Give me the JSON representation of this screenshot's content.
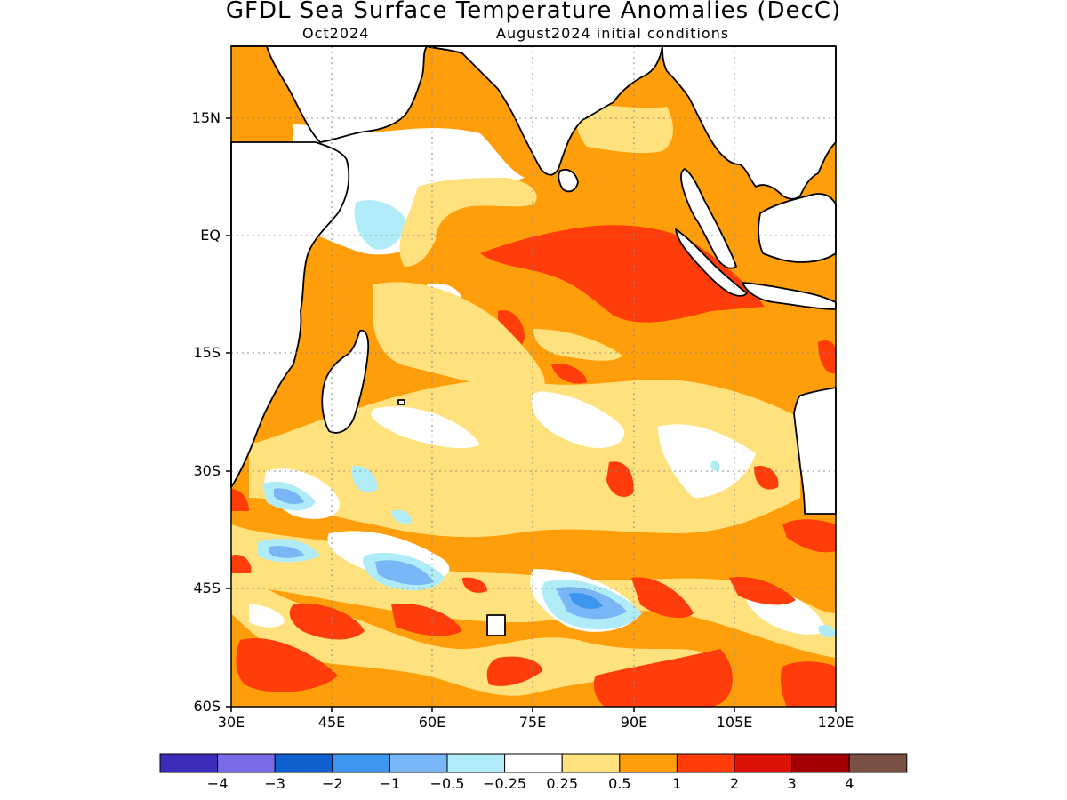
{
  "title": "GFDL Sea Surface Temperature Anomalies (DecC)",
  "subtitle_left": "Oct2024",
  "subtitle_right": "August2024 initial conditions",
  "axes": {
    "lon_range": [
      30,
      120
    ],
    "lat_range": [
      -60,
      24
    ],
    "x_ticks": [
      "30E",
      "45E",
      "60E",
      "75E",
      "90E",
      "105E",
      "120E"
    ],
    "y_ticks": [
      "15N",
      "EQ",
      "15S",
      "30S",
      "45S",
      "60S"
    ],
    "grid": "dotted"
  },
  "colorbar": {
    "labels": [
      "−4",
      "−3",
      "−2",
      "−1",
      "−0.5",
      "−0.25",
      "0.25",
      "0.5",
      "1",
      "2",
      "3",
      "4"
    ],
    "colors": [
      "#3a2bb8",
      "#7a6be6",
      "#1160d0",
      "#3c96ef",
      "#78b6f6",
      "#b0ecf8",
      "#ffffff",
      "#ffe27e",
      "#ff9e0b",
      "#ff3d0b",
      "#dc1206",
      "#a40004",
      "#7a5045"
    ]
  },
  "legend_levels": [
    "<-4",
    "-4 to -3",
    "-3 to -2",
    "-2 to -1",
    "-1 to -0.5",
    "-0.5 to -0.25",
    "-0.25 to 0.25",
    "0.25 to 0.5",
    "0.5 to 1",
    "1 to 2",
    "2 to 3",
    "3 to 4",
    ">4"
  ]
}
